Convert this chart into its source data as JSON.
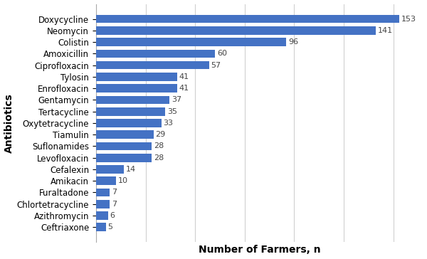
{
  "categories": [
    "Doxycycline",
    "Neomycin",
    "Colistin",
    "Amoxicillin",
    "Ciprofloxacin",
    "Tylosin",
    "Enrofloxacin",
    "Gentamycin",
    "Tertacycline",
    "Oxytetracycline",
    "Tiamulin",
    "Suflonamides",
    "Levofloxacin",
    "Cefalexin",
    "Amikacin",
    "Furaltadone",
    "Chlortetracycline",
    "Azithromycin",
    "Ceftriaxone"
  ],
  "values": [
    153,
    141,
    96,
    60,
    57,
    41,
    41,
    37,
    35,
    33,
    29,
    28,
    28,
    14,
    10,
    7,
    7,
    6,
    5
  ],
  "bar_color": "#4472c4",
  "xlabel": "Number of Farmers, n",
  "ylabel": "Antibiotics",
  "background_color": "#ffffff",
  "grid_color": "#d0d0d0",
  "label_fontsize": 8.5,
  "axis_label_fontsize": 10,
  "value_label_fontsize": 8,
  "bar_height": 0.72,
  "xlim_max": 165
}
